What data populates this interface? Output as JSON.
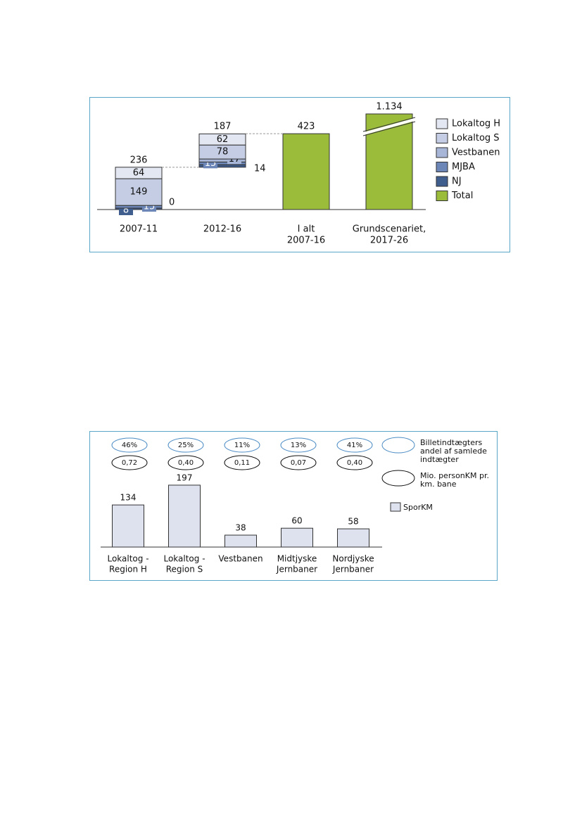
{
  "chart_data": [
    {
      "type": "waterfall",
      "categories": [
        [
          "2007-11"
        ],
        [
          "2012-16"
        ],
        [
          "I alt",
          "2007-16"
        ],
        [
          "Grundscenariet,",
          "2017-26"
        ]
      ],
      "series": [
        {
          "name": "Lokaltog H",
          "color": "#e3e7f1",
          "values": [
            64,
            62,
            null,
            null
          ]
        },
        {
          "name": "Lokaltog S",
          "color": "#c4cde3",
          "values": [
            149,
            78,
            null,
            null
          ]
        },
        {
          "name": "Vestbanen",
          "color": "#a7b5d7",
          "values": [
            0,
            17,
            null,
            null
          ]
        },
        {
          "name": "MJBA",
          "color": "#6c87b7",
          "values": [
            15,
            15,
            null,
            null
          ]
        },
        {
          "name": "NJ",
          "color": "#3f5e8e",
          "values": [
            8,
            14,
            null,
            null
          ]
        },
        {
          "name": "Total",
          "color": "#9bbb3b",
          "values": [
            null,
            null,
            423,
            1134
          ],
          "value_labels": [
            null,
            null,
            "423",
            "1.134"
          ]
        }
      ],
      "totals": [
        236,
        187,
        null,
        null
      ],
      "axis_break": true,
      "legend": "right"
    },
    {
      "type": "bar",
      "categories": [
        [
          "Lokaltog -",
          "Region H"
        ],
        [
          "Lokaltog -",
          "Region S"
        ],
        [
          "Vestbanen"
        ],
        [
          "Midtjyske",
          "Jernbaner"
        ],
        [
          "Nordjyske",
          "Jernbaner"
        ]
      ],
      "series": [
        {
          "name": "SporKM",
          "color": "#dde2ee",
          "values": [
            134,
            197,
            38,
            60,
            58
          ]
        }
      ],
      "annotations": [
        {
          "name": "Billetindtægters andel af samlede indtægter",
          "color": "#4a8bc4",
          "values": [
            46,
            25,
            11,
            13,
            41
          ],
          "value_labels": [
            "46%",
            "25%",
            "11%",
            "13%",
            "41%"
          ]
        },
        {
          "name": "Mio. personKM pr. km. bane",
          "color": "#111111",
          "values": [
            0.72,
            0.4,
            0.11,
            0.07,
            0.4
          ],
          "value_labels": [
            "0,72",
            "0,40",
            "0,11",
            "0,07",
            "0,40"
          ]
        }
      ],
      "legend": "right"
    }
  ]
}
